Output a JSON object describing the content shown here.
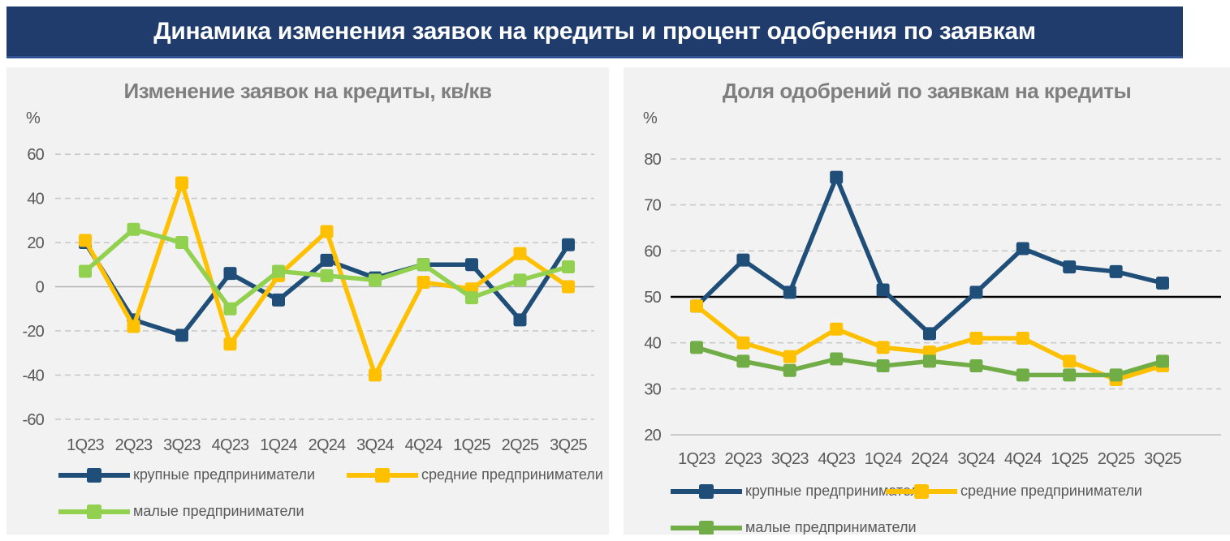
{
  "header": {
    "title": "Динамика изменения заявок на кредиты и процент одобрения по заявкам"
  },
  "colors": {
    "banner_bg": "#1f3c6d",
    "banner_accent": "#2e5395",
    "panel_bg": "#f2f2f2",
    "title_text": "#7f7f7f",
    "axis_text": "#595959",
    "gridline": "#c9c9c9",
    "zero_line": "#b3b3b3",
    "reference_line": "#000000",
    "series_large": "#1f4e79",
    "series_medium": "#ffc000",
    "series_small_left": "#92d050",
    "series_small_right": "#70ad47"
  },
  "chart_data": [
    {
      "type": "line",
      "title": "Изменение заявок на кредиты, кв/кв",
      "unit_label": "%",
      "categories": [
        "1Q23",
        "2Q23",
        "3Q23",
        "4Q23",
        "1Q24",
        "2Q24",
        "3Q24",
        "4Q24",
        "1Q25",
        "2Q25",
        "3Q25"
      ],
      "ylim": [
        -60,
        60
      ],
      "yticks": [
        60,
        40,
        20,
        0,
        -20,
        -40,
        -60
      ],
      "grid": "dashed",
      "solid_lines": [
        {
          "value": 0,
          "color": "#b3b3b3",
          "width": 1.6
        }
      ],
      "legend_position": "bottom",
      "series": [
        {
          "name": "крупные предприниматели",
          "color": "#1f4e79",
          "values": [
            20,
            -15,
            -22,
            6,
            -6,
            12,
            4,
            10,
            10,
            -15,
            19
          ]
        },
        {
          "name": "средние предприниматели",
          "color": "#ffc000",
          "values": [
            21,
            -18,
            47,
            -26,
            5,
            25,
            -40,
            2,
            -1,
            15,
            0
          ]
        },
        {
          "name": "малые предприниматели",
          "color": "#92d050",
          "values": [
            7,
            26,
            20,
            -10,
            7,
            5,
            3,
            10,
            -5,
            3,
            9
          ]
        }
      ]
    },
    {
      "type": "line",
      "title": "Доля одобрений по заявкам на кредиты",
      "unit_label": "%",
      "categories": [
        "1Q23",
        "2Q23",
        "3Q23",
        "4Q23",
        "1Q24",
        "2Q24",
        "3Q24",
        "4Q24",
        "1Q25",
        "2Q25",
        "3Q25"
      ],
      "ylim": [
        20,
        80
      ],
      "yticks": [
        80,
        70,
        60,
        50,
        40,
        30,
        20
      ],
      "grid": "dashed",
      "solid_lines": [
        {
          "value": 50,
          "color": "#000000",
          "width": 2.6
        },
        {
          "value": 20,
          "color": "#bfbfbf",
          "width": 1.6
        }
      ],
      "legend_position": "bottom",
      "series": [
        {
          "name": "крупные предприниматели",
          "color": "#1f4e79",
          "values": [
            48,
            58,
            51,
            76,
            51.5,
            42,
            51,
            60.5,
            56.5,
            55.5,
            53
          ]
        },
        {
          "name": "средние предприниматели",
          "color": "#ffc000",
          "values": [
            48,
            40,
            37,
            43,
            39,
            38,
            41,
            41,
            36,
            32,
            35
          ]
        },
        {
          "name": "малые предприниматели",
          "color": "#70ad47",
          "values": [
            39,
            36,
            34,
            36.5,
            35,
            36,
            35,
            33,
            33,
            33,
            36
          ]
        }
      ]
    }
  ]
}
